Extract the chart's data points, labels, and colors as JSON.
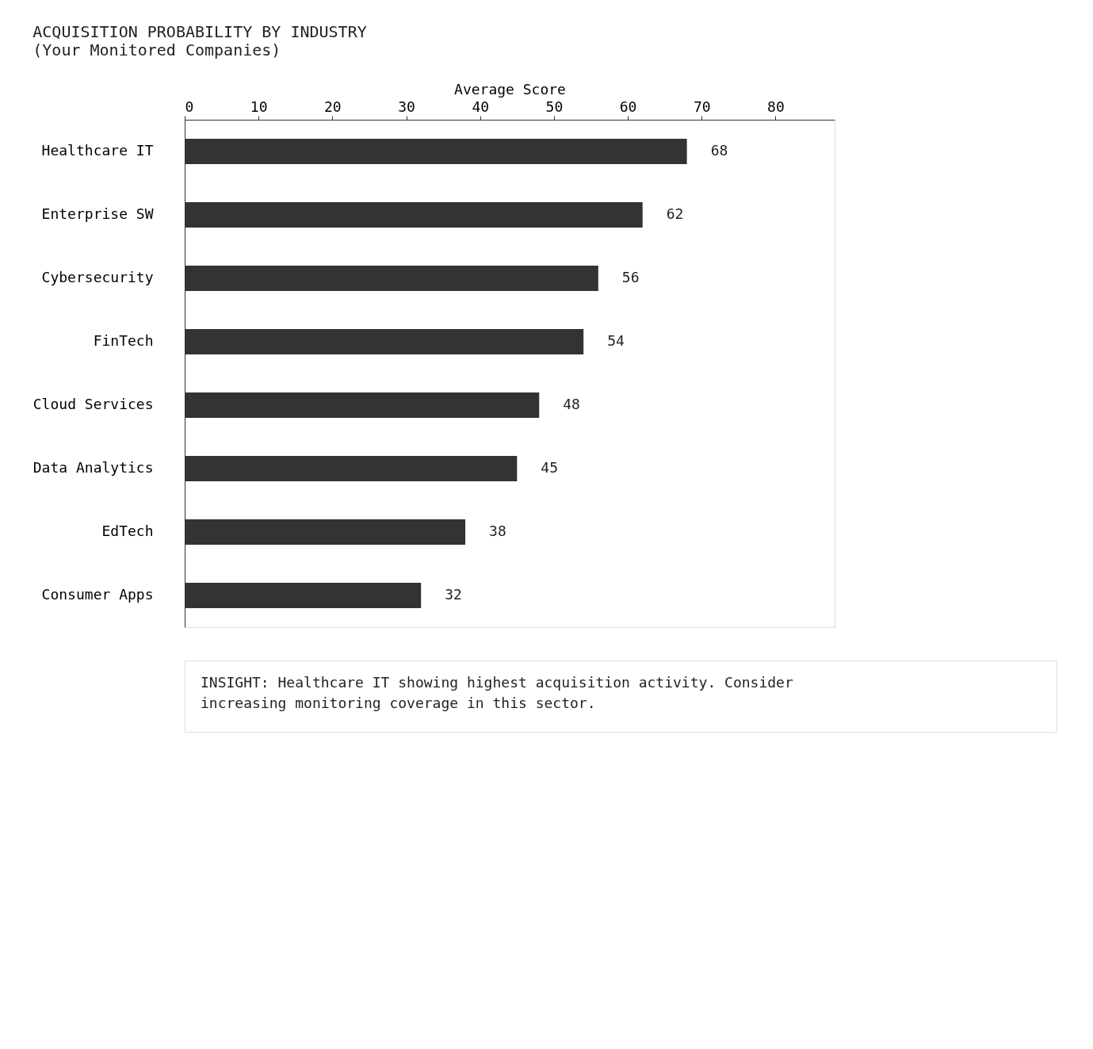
{
  "chart_data": {
    "type": "bar",
    "orientation": "horizontal",
    "title": "ACQUISITION PROBABILITY BY INDUSTRY",
    "subtitle": "(Your Monitored Companies)",
    "xlabel": "Average Score",
    "categories": [
      "Healthcare IT",
      "Enterprise SW",
      "Cybersecurity",
      "FinTech",
      "Cloud Services",
      "Data Analytics",
      "EdTech",
      "Consumer Apps"
    ],
    "values": [
      68,
      62,
      56,
      54,
      48,
      45,
      38,
      32
    ],
    "color": "#333333",
    "xlim": [
      0,
      88
    ],
    "xticks": [
      0,
      10,
      20,
      30,
      40,
      50,
      60,
      70,
      80
    ],
    "grid": false,
    "data_labels": true,
    "annotations": [
      "INSIGHT: Healthcare IT showing highest acquisition activity. Consider increasing monitoring coverage in this sector."
    ]
  }
}
